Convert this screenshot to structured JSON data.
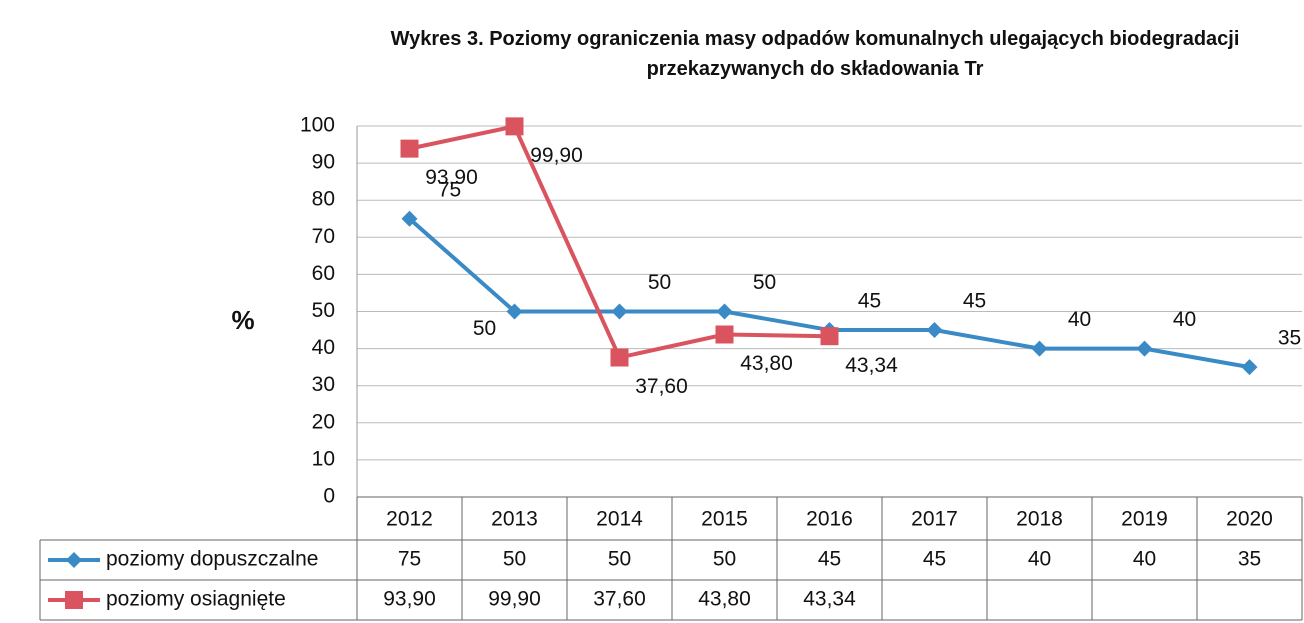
{
  "chart_data": {
    "type": "line",
    "title": "Wykres 3. Poziomy ograniczenia masy odpadów komunalnych ulegających biodegradacji przekazywanych do składowania Tr",
    "ylabel": "%",
    "categories": [
      "2012",
      "2013",
      "2014",
      "2015",
      "2016",
      "2017",
      "2018",
      "2019",
      "2020"
    ],
    "series": [
      {
        "name": "poziomy dopuszczalne",
        "color": "#3a8ac6",
        "marker": "diamond",
        "values": [
          75,
          50,
          50,
          50,
          45,
          45,
          40,
          40,
          35
        ]
      },
      {
        "name": "poziomy osiagnięte",
        "color": "#d9545e",
        "marker": "square",
        "values": [
          93.9,
          99.9,
          37.6,
          43.8,
          43.34,
          null,
          null,
          null,
          null
        ],
        "value_labels": [
          "93,90",
          "99,90",
          "37,60",
          "43,80",
          "43,34",
          null,
          null,
          null,
          null
        ]
      }
    ],
    "ylim": [
      0,
      100
    ],
    "yticks": [
      0,
      10,
      20,
      30,
      40,
      50,
      60,
      70,
      80,
      90,
      100
    ],
    "grid": true,
    "data_table": true
  }
}
